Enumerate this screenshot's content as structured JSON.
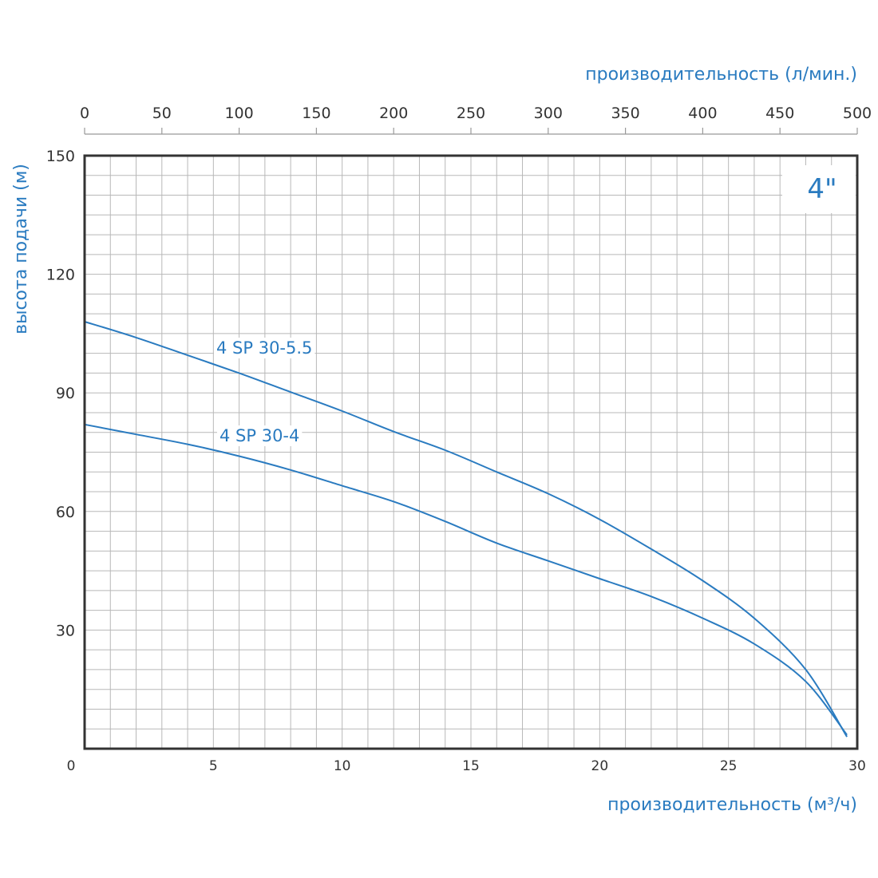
{
  "chart_data": {
    "type": "line",
    "badge": "4\"",
    "xlabel": "производительность (м³/ч)",
    "x2label": "производительность (л/мин.)",
    "ylabel": "высота подачи (м)",
    "xlim": [
      0,
      30
    ],
    "x2lim": [
      0,
      500
    ],
    "ylim": [
      0,
      150
    ],
    "x_ticks": [
      "0",
      "5",
      "10",
      "15",
      "20",
      "25",
      "30"
    ],
    "x2_ticks": [
      "0",
      "50",
      "100",
      "150",
      "200",
      "250",
      "300",
      "350",
      "400",
      "450",
      "500"
    ],
    "y_ticks": [
      "30",
      "60",
      "90",
      "120",
      "150"
    ],
    "grid": true,
    "colors": {
      "series": "#2a7bc0",
      "grid": "#b8b8b8",
      "frame": "#333333"
    },
    "series": [
      {
        "name": "4 SP 30-5.5",
        "x": [
          0,
          2,
          4,
          6,
          8,
          10,
          12,
          14,
          16,
          18,
          20,
          22,
          24,
          26,
          28,
          29.6
        ],
        "y": [
          108,
          104,
          99.5,
          95,
          90.2,
          85.4,
          80.2,
          75.5,
          70,
          64.5,
          58,
          50.5,
          42.5,
          33,
          20,
          3
        ]
      },
      {
        "name": "4 SP 30-4",
        "x": [
          0,
          2,
          4,
          6,
          8,
          10,
          12,
          14,
          16,
          18,
          20,
          22,
          24,
          26,
          28,
          29.6
        ],
        "y": [
          82,
          79.5,
          77,
          74,
          70.5,
          66.5,
          62.5,
          57.5,
          52,
          47.5,
          43,
          38.5,
          33,
          26.5,
          17,
          3.5
        ]
      }
    ]
  }
}
